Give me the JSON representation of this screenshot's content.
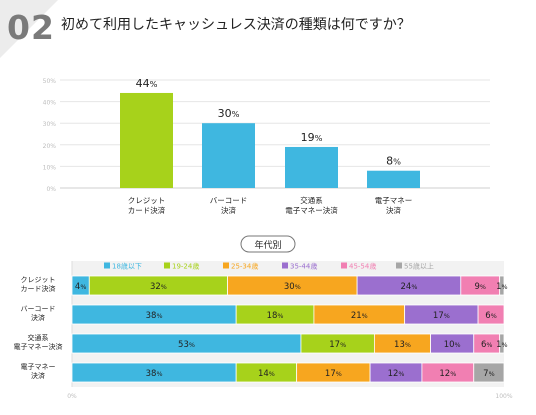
{
  "question": {
    "number": "02",
    "title": "初めて利用したキャッシュレス決済の種類は何ですか？"
  },
  "colors": {
    "top_bar_green": "#a7d21b",
    "top_bar_blue": "#3fb7e0",
    "ages": [
      "#3fb7e0",
      "#a7d21b",
      "#f7a61f",
      "#9b6fcf",
      "#f17fb2",
      "#a6a6a6"
    ],
    "axis_text": "#bdbdbd",
    "grid": "#e6e6e6"
  },
  "chart_data": [
    {
      "type": "bar",
      "categories": [
        "クレジット\nカード決済",
        "バーコード\n決済",
        "交通系\n電子マネー決済",
        "電子マネー\n決済"
      ],
      "values": [
        44,
        30,
        19,
        8
      ],
      "value_labels": [
        "44%",
        "30%",
        "19%",
        "8%"
      ],
      "ylim": [
        0,
        50
      ],
      "y_ticks": [
        "0%",
        "10%",
        "20%",
        "30%",
        "40%",
        "50%"
      ],
      "grid": true
    },
    {
      "type": "bar",
      "stacked": true,
      "orientation": "horizontal",
      "title": "年代別",
      "categories": [
        "クレジット\nカード決済",
        "バーコード\n決済",
        "交通系\n電子マネー決済",
        "電子マネー\n決済"
      ],
      "series": [
        {
          "name": "18歳以下",
          "values": [
            4,
            38,
            53,
            38
          ]
        },
        {
          "name": "19-24歳",
          "values": [
            32,
            18,
            17,
            14
          ]
        },
        {
          "name": "25-34歳",
          "values": [
            30,
            21,
            13,
            17
          ]
        },
        {
          "name": "35-44歳",
          "values": [
            24,
            17,
            10,
            12
          ]
        },
        {
          "name": "45-54歳",
          "values": [
            9,
            6,
            6,
            12
          ]
        },
        {
          "name": "55歳以上",
          "values": [
            1,
            0,
            1,
            7
          ]
        }
      ],
      "segment_labels": [
        [
          "4%",
          "32%",
          "30%",
          "24%",
          "9%",
          "1%"
        ],
        [
          "38%",
          "18%",
          "21%",
          "17%",
          "6%",
          ""
        ],
        [
          "53%",
          "17%",
          "13%",
          "10%",
          "6%",
          "1%"
        ],
        [
          "38%",
          "14%",
          "17%",
          "12%",
          "12%",
          "7%"
        ]
      ],
      "xlim": [
        0,
        100
      ],
      "x_ticks": [
        "0%",
        "100%"
      ],
      "legend_position": "top"
    }
  ]
}
